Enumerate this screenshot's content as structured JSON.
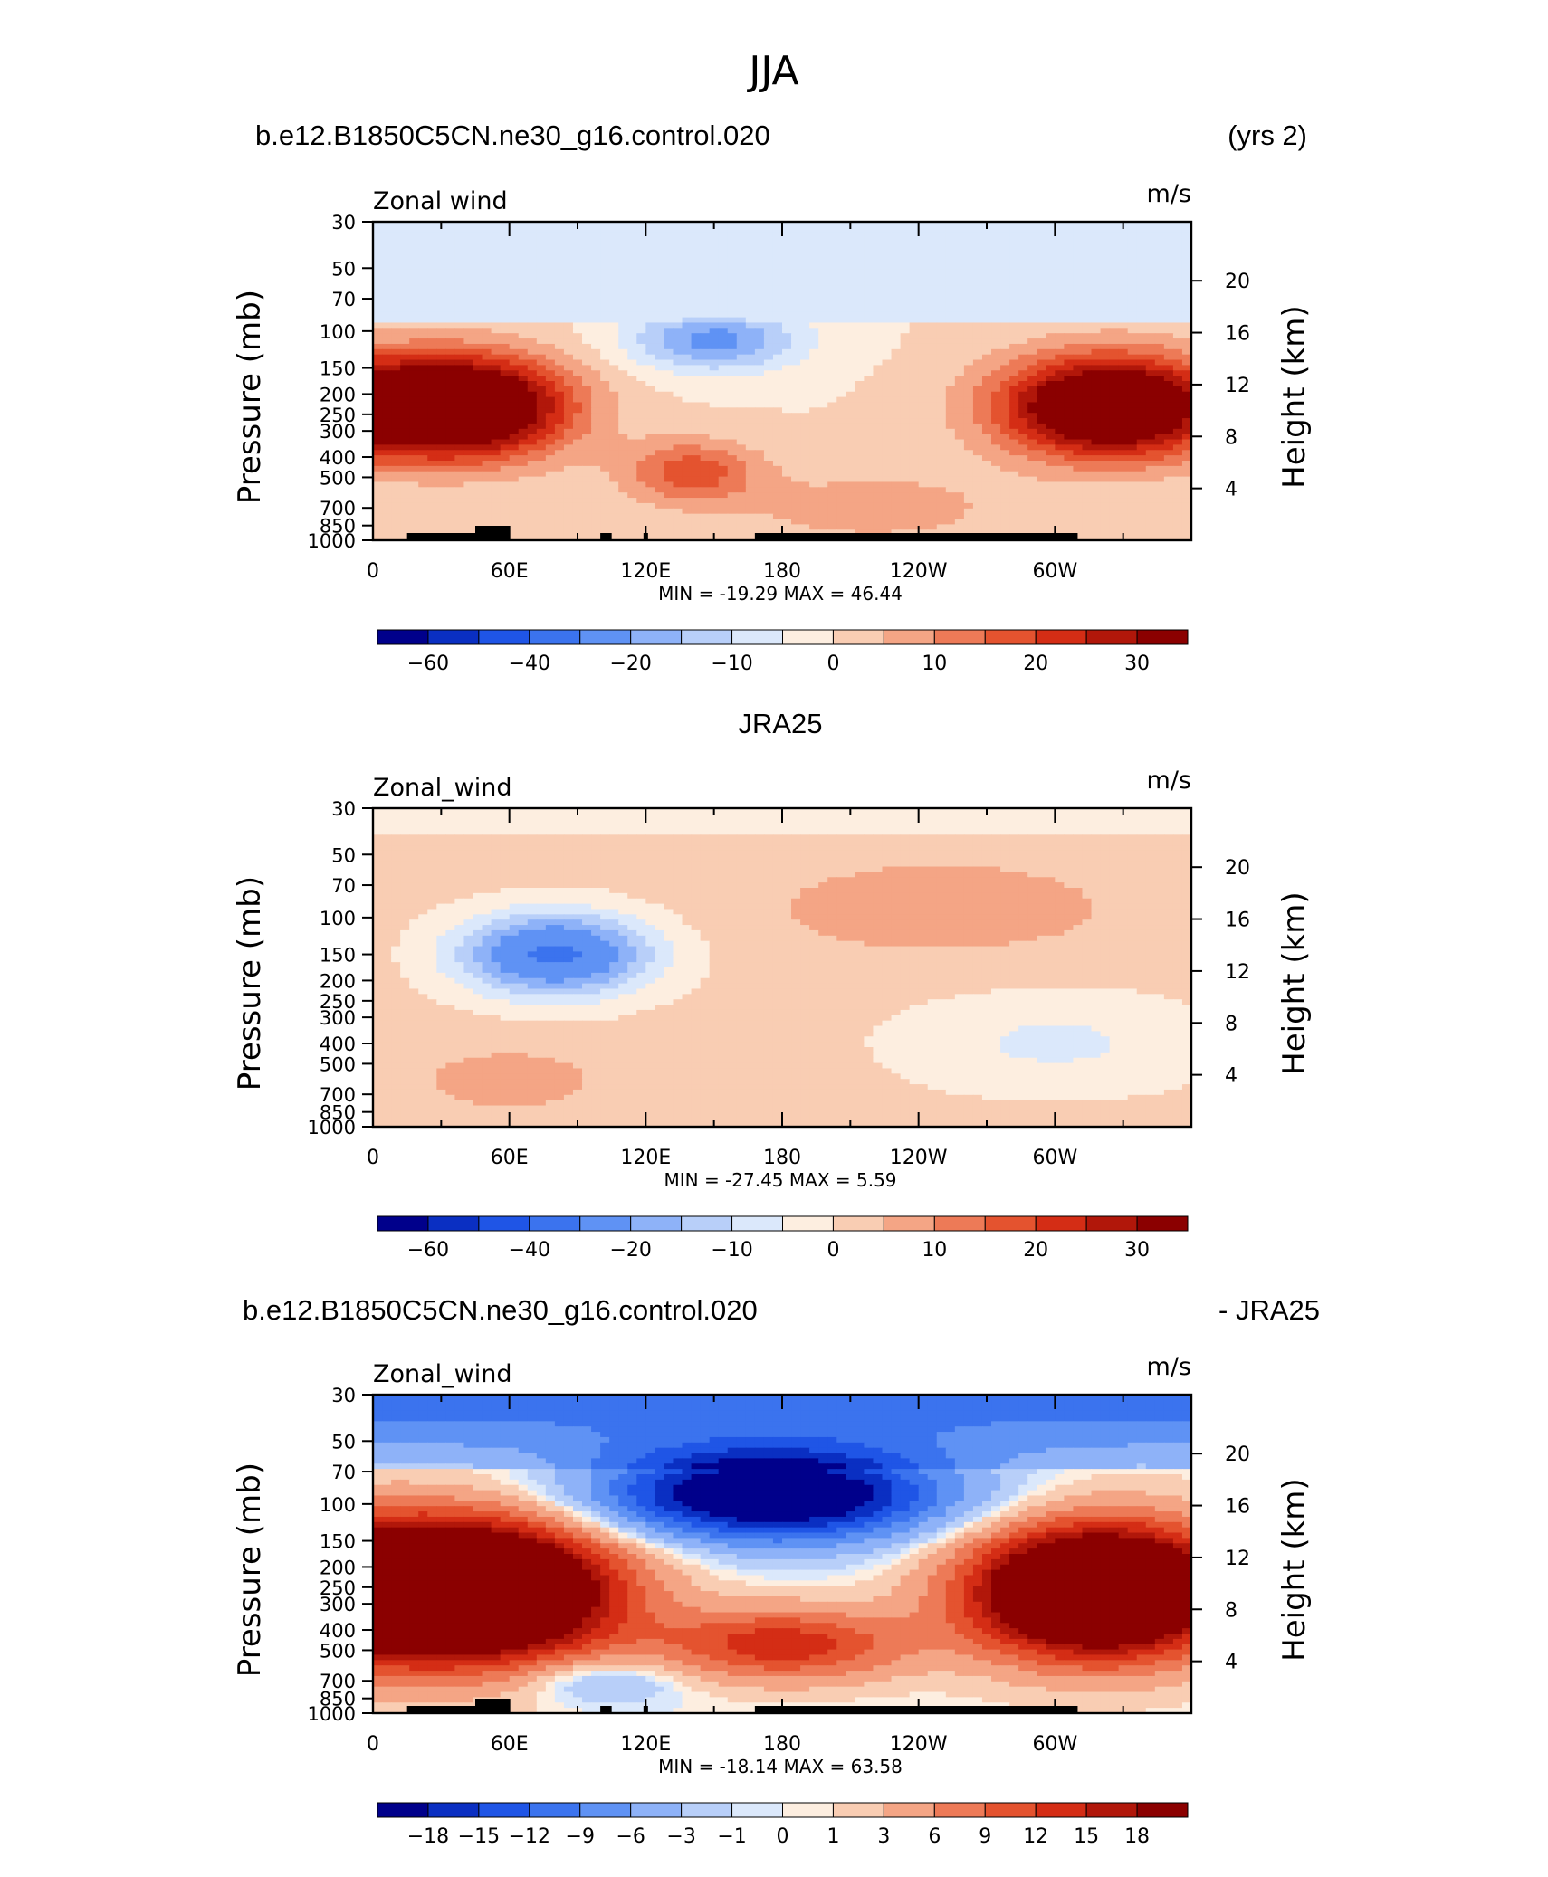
{
  "figure": {
    "title": "JJA",
    "panel1_left": "b.e12.B1850C5CN.ne30_g16.control.020",
    "panel1_right": "(yrs 2)",
    "panel2_title": "JRA25",
    "panel3_left": "b.e12.B1850C5CN.ne30_g16.control.020",
    "panel3_right": "- JRA25"
  },
  "chart_data": [
    {
      "type": "heatmap",
      "panel": "model",
      "variable_label": "Zonal wind",
      "units": "m/s",
      "ylabel_left": "Pressure (mb)",
      "ylabel_right": "Height (km)",
      "x_ticks": [
        "0",
        "60E",
        "120E",
        "180",
        "120W",
        "60W"
      ],
      "p_ticks": [
        "30",
        "50",
        "70",
        "100",
        "150",
        "200",
        "250",
        "300",
        "400",
        "500",
        "700",
        "850",
        "1000"
      ],
      "height_ticks": [
        "20",
        "16",
        "12",
        "8",
        "4"
      ],
      "stats": {
        "min_label": "MIN =",
        "min": "-19.29",
        "max_label": "MAX =",
        "max": "46.44"
      },
      "levels": [
        -70,
        -60,
        -50,
        -40,
        -30,
        -20,
        -15,
        -10,
        -5,
        0,
        5,
        10,
        15,
        20,
        25,
        30,
        40
      ],
      "colorbar_labels": [
        "-60",
        "-40",
        "-20",
        "-10",
        "0",
        "10",
        "20",
        "30"
      ],
      "colorbar_label_slots": [
        1,
        3,
        5,
        7,
        9,
        11,
        13,
        15
      ],
      "features": [
        {
          "lon": 40,
          "p": 230,
          "value": 38,
          "description": "southern subtropical jet core"
        },
        {
          "lon": 300,
          "p": 230,
          "value": 40,
          "description": "jet core over western hemisphere"
        },
        {
          "lon": 140,
          "p": 110,
          "value": -12,
          "description": "easterlies over Asia"
        },
        {
          "lon": 140,
          "p": 500,
          "value": 15,
          "description": "low-level westerlies"
        }
      ]
    },
    {
      "type": "heatmap",
      "panel": "obs",
      "variable_label": "Zonal_wind",
      "units": "m/s",
      "ylabel_left": "Pressure (mb)",
      "ylabel_right": "Height (km)",
      "x_ticks": [
        "0",
        "60E",
        "120E",
        "180",
        "120W",
        "60W"
      ],
      "p_ticks": [
        "30",
        "50",
        "70",
        "100",
        "150",
        "200",
        "250",
        "300",
        "400",
        "500",
        "700",
        "850",
        "1000"
      ],
      "height_ticks": [
        "20",
        "16",
        "12",
        "8",
        "4"
      ],
      "stats": {
        "min_label": "MIN =",
        "min": "-27.45",
        "max_label": "MAX =",
        "max": "5.59"
      },
      "levels": [
        -70,
        -60,
        -50,
        -40,
        -30,
        -20,
        -15,
        -10,
        -5,
        0,
        5,
        10,
        15,
        20,
        25,
        30,
        40
      ],
      "colorbar_labels": [
        "-60",
        "-40",
        "-20",
        "-10",
        "0",
        "10",
        "20",
        "30"
      ],
      "colorbar_label_slots": [
        1,
        3,
        5,
        7,
        9,
        11,
        13,
        15
      ],
      "features": [
        {
          "lon": 75,
          "p": 150,
          "value": -27,
          "description": "easterly jet core"
        },
        {
          "lon": 250,
          "p": 90,
          "value": 5,
          "description": "weak westerlies aloft"
        },
        {
          "lon": 300,
          "p": 400,
          "value": -5,
          "description": "weak easterlies"
        }
      ]
    },
    {
      "type": "heatmap",
      "panel": "difference",
      "variable_label": "Zonal_wind",
      "units": "m/s",
      "ylabel_left": "Pressure (mb)",
      "ylabel_right": "Height (km)",
      "x_ticks": [
        "0",
        "60E",
        "120E",
        "180",
        "120W",
        "60W"
      ],
      "p_ticks": [
        "30",
        "50",
        "70",
        "100",
        "150",
        "200",
        "250",
        "300",
        "400",
        "500",
        "700",
        "850",
        "1000"
      ],
      "height_ticks": [
        "20",
        "16",
        "12",
        "8",
        "4"
      ],
      "stats": {
        "min_label": "MIN =",
        "min": "-18.14",
        "max_label": "MAX =",
        "max": "63.58"
      },
      "levels": [
        -21,
        -18,
        -15,
        -12,
        -9,
        -6,
        -3,
        -1,
        0,
        1,
        3,
        6,
        9,
        12,
        15,
        18,
        21
      ],
      "colorbar_labels": [
        "-18",
        "-15",
        "-12",
        "-9",
        "-6",
        "-3",
        "-1",
        "0",
        "1",
        "3",
        "6",
        "9",
        "12",
        "15",
        "18"
      ],
      "colorbar_label_slots": [
        1,
        2,
        3,
        4,
        5,
        6,
        7,
        8,
        9,
        10,
        11,
        12,
        13,
        14,
        15
      ],
      "features": [
        {
          "lon": 40,
          "p": 250,
          "value": 30,
          "description": "large positive bias"
        },
        {
          "lon": 300,
          "p": 250,
          "value": 30,
          "description": "large positive bias"
        },
        {
          "lon": 170,
          "p": 85,
          "value": -17,
          "description": "negative bias aloft"
        }
      ]
    }
  ],
  "colors": {
    "palette": [
      "#00008b",
      "#0a2fc2",
      "#1f55e6",
      "#3b73ee",
      "#5f92f4",
      "#8eb2f8",
      "#b8cff9",
      "#dbe8fb",
      "#fdeee0",
      "#f9cdb3",
      "#f4a585",
      "#ed7a57",
      "#e4532f",
      "#d42d15",
      "#b1170a",
      "#8b0000"
    ]
  }
}
